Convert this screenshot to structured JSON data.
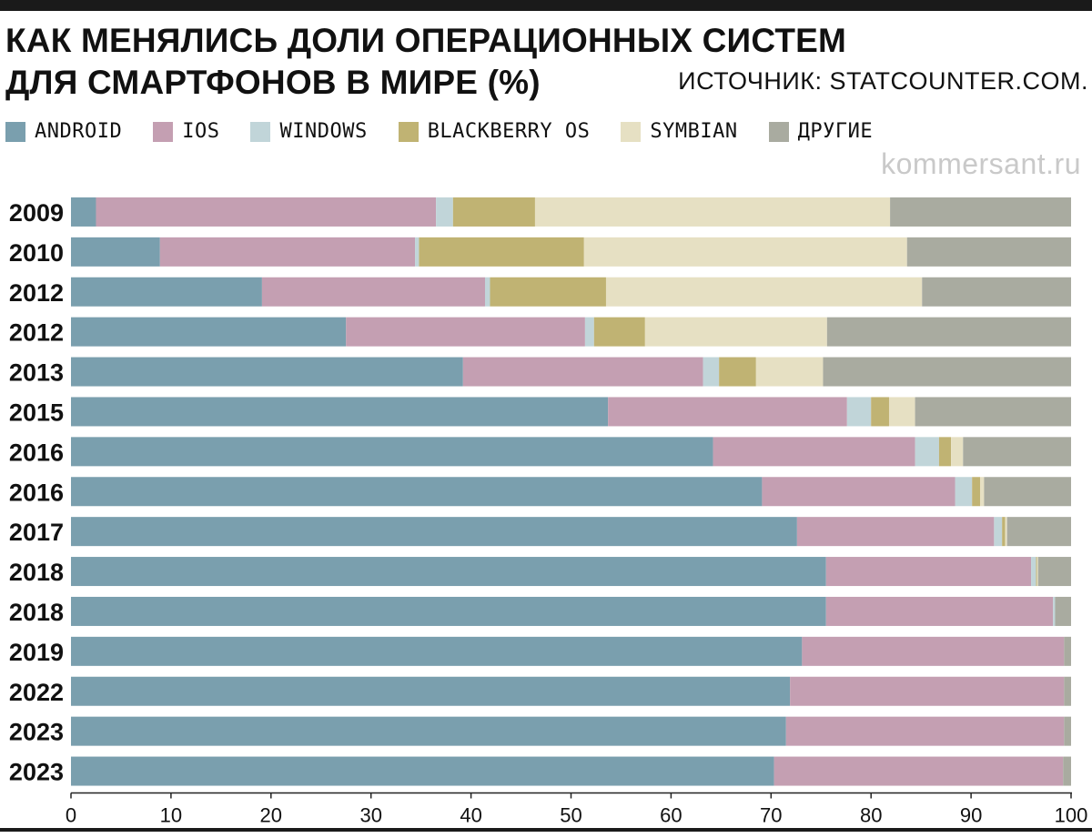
{
  "header": {
    "title_line1": "КАК МЕНЯЛИСЬ ДОЛИ ОПЕРАЦИОННЫХ СИСТЕМ",
    "title_line2": "ДЛЯ СМАРТФОНОВ В МИРЕ (%)",
    "source": "ИСТОЧНИК: STATCOUNTER.COM.",
    "watermark": "kommersant.ru"
  },
  "legend": [
    {
      "label": "ANDROID",
      "color": "#7a9fae"
    },
    {
      "label": "IOS",
      "color": "#c49fb2"
    },
    {
      "label": "WINDOWS",
      "color": "#c1d5d9"
    },
    {
      "label": "BLACKBERRY OS",
      "color": "#c0b373"
    },
    {
      "label": "SYMBIAN",
      "color": "#e6e0c3"
    },
    {
      "label": "ДРУГИЕ",
      "color": "#a9aba0"
    }
  ],
  "chart_data": {
    "type": "bar",
    "orientation": "horizontal",
    "stacked": true,
    "title": "КАК МЕНЯЛИСЬ ДОЛИ ОПЕРАЦИОННЫХ СИСТЕМ ДЛЯ СМАРТФОНОВ В МИРЕ (%)",
    "xlabel": "",
    "ylabel": "",
    "xlim": [
      0,
      100
    ],
    "xticks": [
      0,
      10,
      20,
      30,
      40,
      50,
      60,
      70,
      80,
      90,
      100
    ],
    "categories": [
      "2009",
      "2010",
      "2012",
      "2012",
      "2013",
      "2015",
      "2016",
      "2016",
      "2017",
      "2018",
      "2018",
      "2019",
      "2022",
      "2023",
      "2023"
    ],
    "series": [
      {
        "name": "ANDROID",
        "color": "#7a9fae",
        "values": [
          2.5,
          8.9,
          19.1,
          27.5,
          39.2,
          53.7,
          64.2,
          69.1,
          72.6,
          75.5,
          75.5,
          73.1,
          71.9,
          71.5,
          70.3
        ]
      },
      {
        "name": "IOS",
        "color": "#c49fb2",
        "values": [
          34.0,
          25.5,
          22.3,
          23.9,
          24.0,
          23.9,
          20.2,
          19.3,
          19.7,
          20.5,
          22.7,
          26.2,
          27.4,
          27.8,
          28.9
        ]
      },
      {
        "name": "WINDOWS",
        "color": "#c1d5d9",
        "values": [
          1.7,
          0.4,
          0.5,
          0.9,
          1.6,
          2.4,
          2.4,
          1.7,
          0.8,
          0.5,
          0.2,
          0.0,
          0.0,
          0.0,
          0.0
        ]
      },
      {
        "name": "BLACKBERRY OS",
        "color": "#c0b373",
        "values": [
          8.2,
          16.5,
          11.6,
          5.1,
          3.7,
          1.8,
          1.2,
          0.8,
          0.3,
          0.1,
          0.0,
          0.0,
          0.0,
          0.0,
          0.0
        ]
      },
      {
        "name": "SYMBIAN",
        "color": "#e6e0c3",
        "values": [
          35.5,
          32.3,
          31.6,
          18.2,
          6.7,
          2.6,
          1.2,
          0.4,
          0.2,
          0.1,
          0.0,
          0.0,
          0.0,
          0.0,
          0.0
        ]
      },
      {
        "name": "ДРУГИЕ",
        "color": "#a9aba0",
        "values": [
          18.1,
          16.4,
          14.9,
          24.4,
          24.8,
          15.6,
          10.8,
          8.7,
          6.4,
          3.3,
          1.6,
          0.7,
          0.7,
          0.7,
          0.8
        ]
      }
    ]
  }
}
